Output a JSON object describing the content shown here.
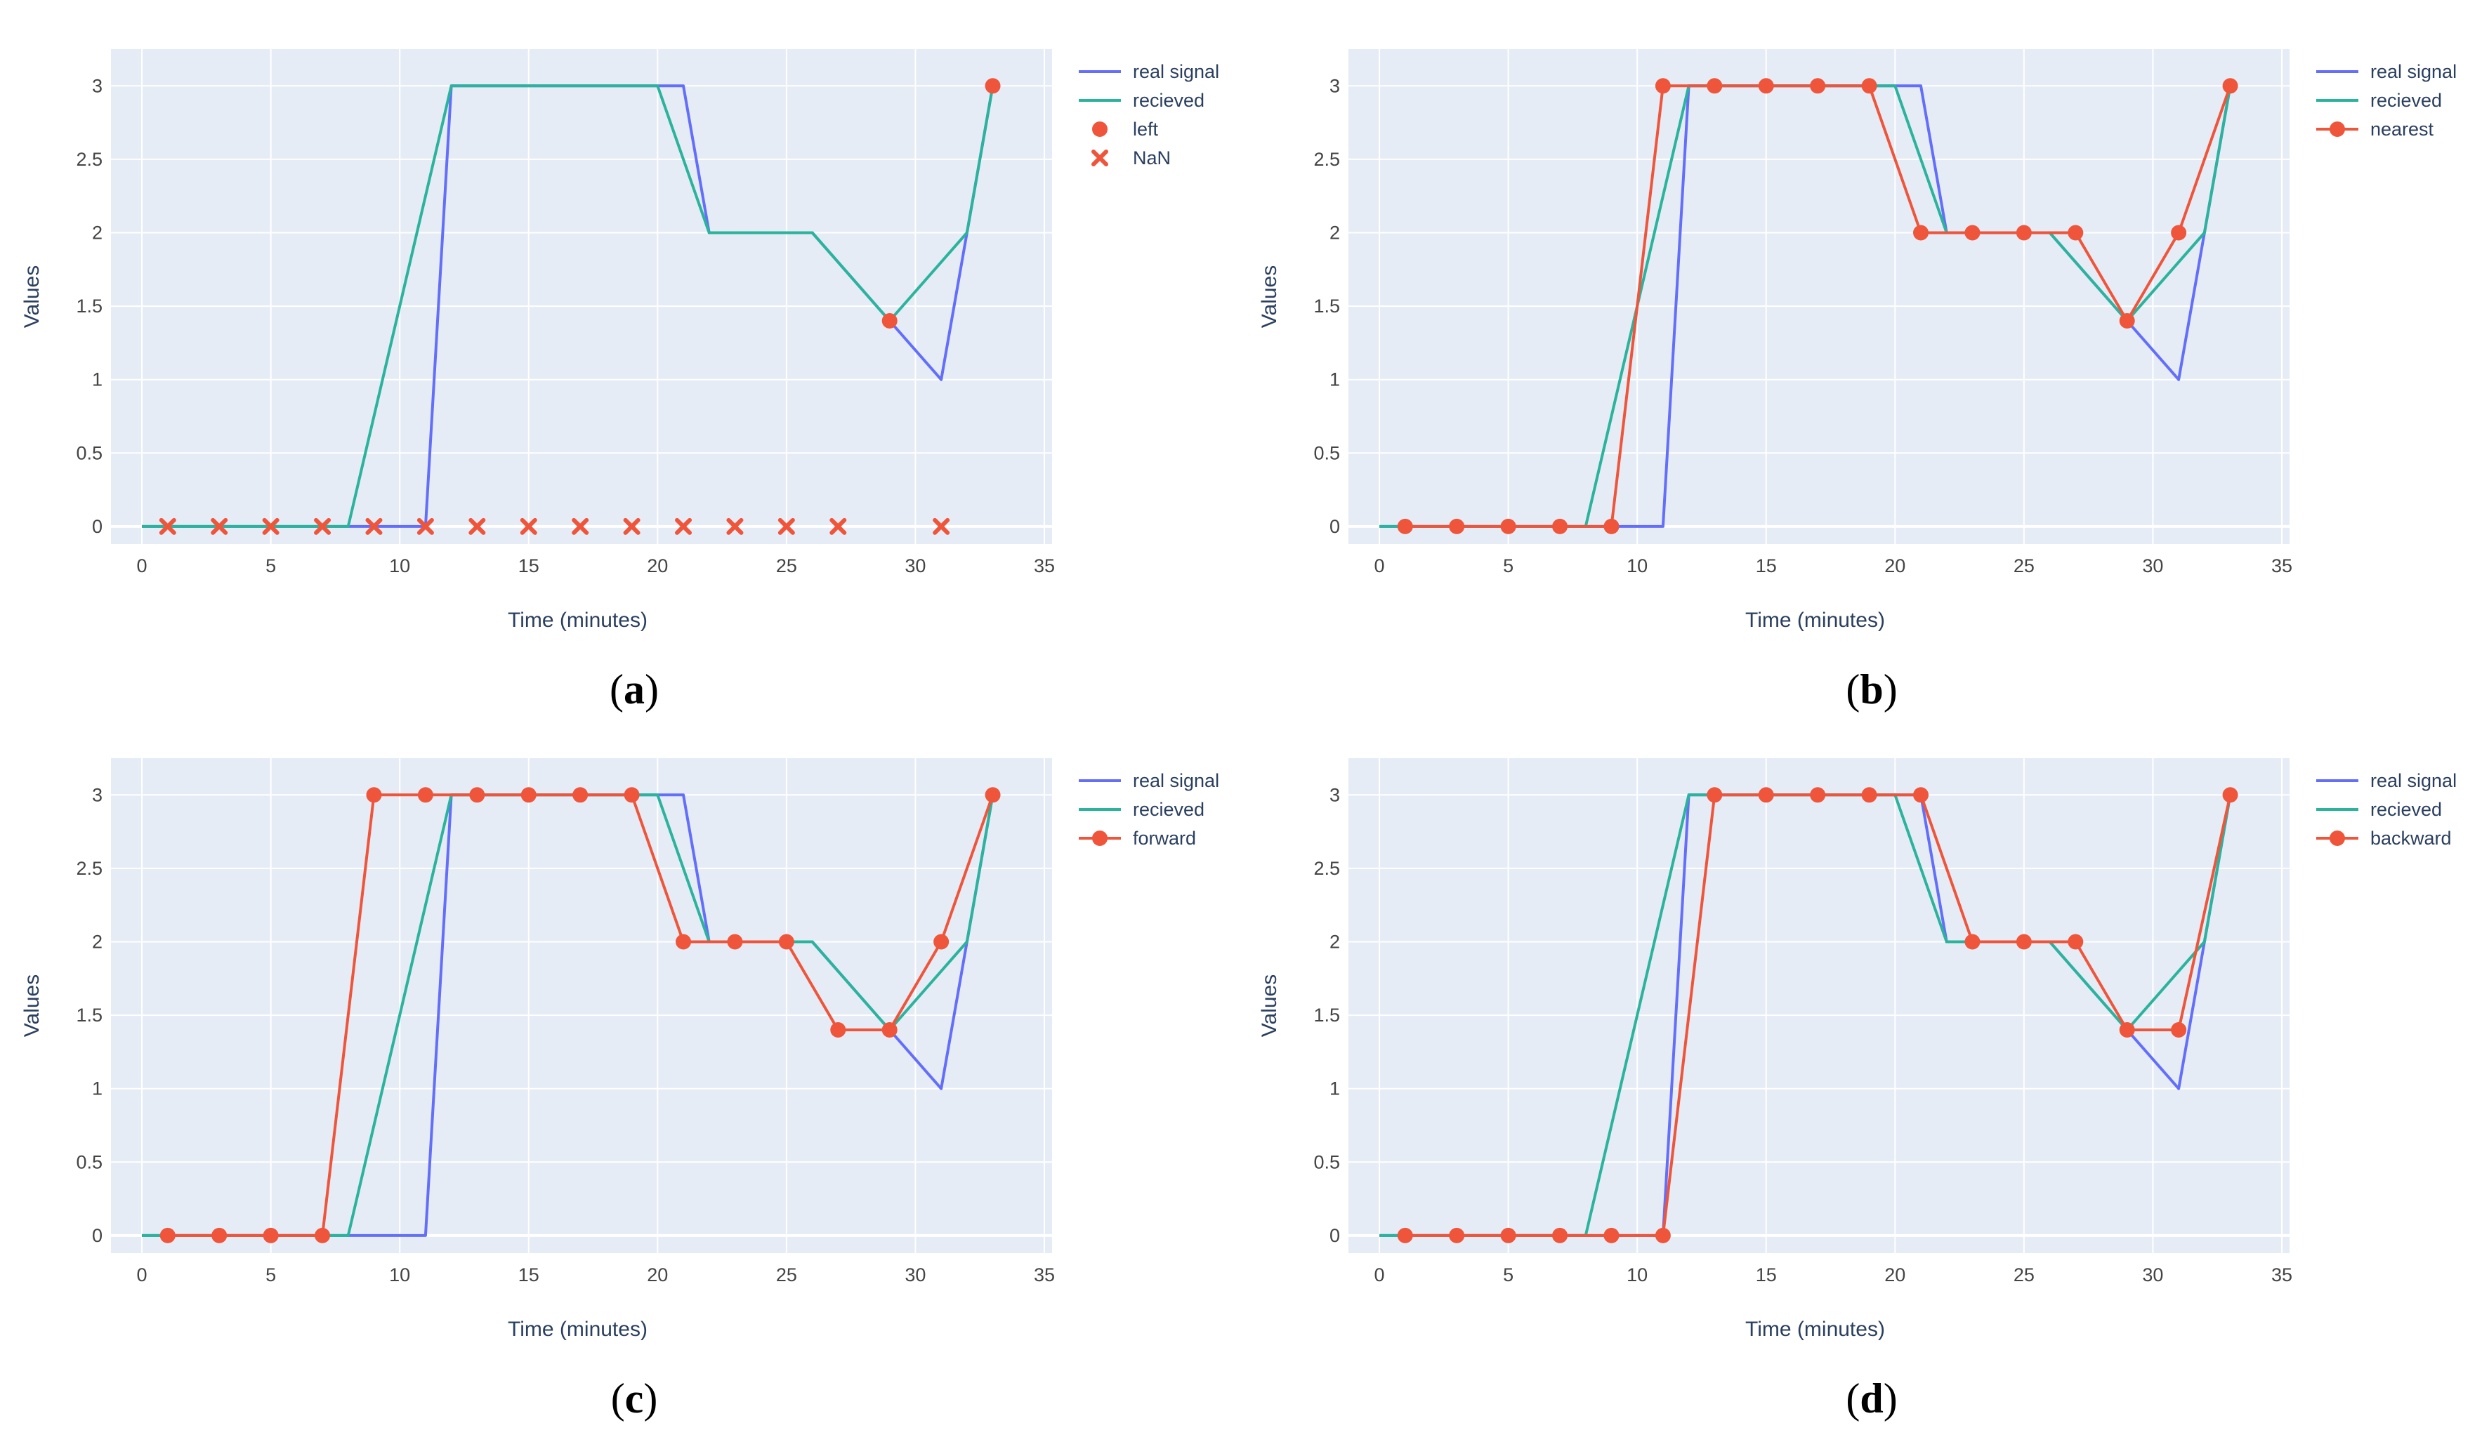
{
  "colors": {
    "plot_bg": "#e5ecf6",
    "grid": "#ffffff",
    "real_signal": "#636efa",
    "recieved": "#2bb39c",
    "method": "#ef553b",
    "axis_text": "#2a3f5f"
  },
  "chart_data": [
    {
      "type": "line",
      "panel_label": "a",
      "xlabel": "Time (minutes)",
      "ylabel": "Values",
      "xlim": [
        -1.2,
        35.3
      ],
      "ylim": [
        -0.12,
        3.25
      ],
      "xticks": [
        0,
        5,
        10,
        15,
        20,
        25,
        30,
        35
      ],
      "yticks": [
        0,
        0.5,
        1,
        1.5,
        2,
        2.5,
        3
      ],
      "legend_position": "top-right",
      "series": [
        {
          "name": "real signal",
          "kind": "line",
          "color": "#636efa",
          "x": [
            0,
            11,
            12,
            21,
            22,
            26,
            29,
            31,
            33
          ],
          "y": [
            0,
            0,
            3,
            3,
            2,
            2,
            1.4,
            1,
            3
          ]
        },
        {
          "name": "recieved",
          "kind": "line",
          "color": "#2bb39c",
          "x": [
            0,
            8,
            12,
            20,
            22,
            26,
            29,
            32,
            33
          ],
          "y": [
            0,
            0,
            3,
            3,
            2,
            2,
            1.4,
            2,
            3
          ]
        },
        {
          "name": "left",
          "kind": "markers",
          "marker": "circle",
          "color": "#ef553b",
          "x": [
            29,
            33
          ],
          "y": [
            1.4,
            3
          ]
        },
        {
          "name": "NaN",
          "kind": "markers",
          "marker": "x",
          "color": "#ef553b",
          "x": [
            1,
            3,
            5,
            7,
            9,
            11,
            13,
            15,
            17,
            19,
            21,
            23,
            25,
            27,
            31
          ],
          "y": [
            0,
            0,
            0,
            0,
            0,
            0,
            0,
            0,
            0,
            0,
            0,
            0,
            0,
            0,
            0
          ]
        }
      ]
    },
    {
      "type": "line",
      "panel_label": "b",
      "xlabel": "Time (minutes)",
      "ylabel": "Values",
      "xlim": [
        -1.2,
        35.3
      ],
      "ylim": [
        -0.12,
        3.25
      ],
      "xticks": [
        0,
        5,
        10,
        15,
        20,
        25,
        30,
        35
      ],
      "yticks": [
        0,
        0.5,
        1,
        1.5,
        2,
        2.5,
        3
      ],
      "legend_position": "top-right",
      "series": [
        {
          "name": "real signal",
          "kind": "line",
          "color": "#636efa",
          "x": [
            0,
            11,
            12,
            21,
            22,
            26,
            29,
            31,
            33
          ],
          "y": [
            0,
            0,
            3,
            3,
            2,
            2,
            1.4,
            1,
            3
          ]
        },
        {
          "name": "recieved",
          "kind": "line",
          "color": "#2bb39c",
          "x": [
            0,
            8,
            12,
            20,
            22,
            26,
            29,
            32,
            33
          ],
          "y": [
            0,
            0,
            3,
            3,
            2,
            2,
            1.4,
            2,
            3
          ]
        },
        {
          "name": "nearest",
          "kind": "lines+markers",
          "color": "#ef553b",
          "x": [
            1,
            3,
            5,
            7,
            9,
            11,
            13,
            15,
            17,
            19,
            21,
            23,
            25,
            27,
            29,
            31,
            33
          ],
          "y": [
            0,
            0,
            0,
            0,
            0,
            3,
            3,
            3,
            3,
            3,
            2,
            2,
            2,
            2,
            1.4,
            2,
            3
          ]
        }
      ]
    },
    {
      "type": "line",
      "panel_label": "c",
      "xlabel": "Time (minutes)",
      "ylabel": "Values",
      "xlim": [
        -1.2,
        35.3
      ],
      "ylim": [
        -0.12,
        3.25
      ],
      "xticks": [
        0,
        5,
        10,
        15,
        20,
        25,
        30,
        35
      ],
      "yticks": [
        0,
        0.5,
        1,
        1.5,
        2,
        2.5,
        3
      ],
      "legend_position": "top-right",
      "series": [
        {
          "name": "real signal",
          "kind": "line",
          "color": "#636efa",
          "x": [
            0,
            11,
            12,
            21,
            22,
            26,
            29,
            31,
            33
          ],
          "y": [
            0,
            0,
            3,
            3,
            2,
            2,
            1.4,
            1,
            3
          ]
        },
        {
          "name": "recieved",
          "kind": "line",
          "color": "#2bb39c",
          "x": [
            0,
            8,
            12,
            20,
            22,
            26,
            29,
            32,
            33
          ],
          "y": [
            0,
            0,
            3,
            3,
            2,
            2,
            1.4,
            2,
            3
          ]
        },
        {
          "name": "forward",
          "kind": "lines+markers",
          "color": "#ef553b",
          "x": [
            1,
            3,
            5,
            7,
            9,
            11,
            13,
            15,
            17,
            19,
            21,
            23,
            25,
            27,
            29,
            31,
            33
          ],
          "y": [
            0,
            0,
            0,
            0,
            3,
            3,
            3,
            3,
            3,
            3,
            2,
            2,
            2,
            1.4,
            1.4,
            2,
            3
          ]
        }
      ]
    },
    {
      "type": "line",
      "panel_label": "d",
      "xlabel": "Time (minutes)",
      "ylabel": "Values",
      "xlim": [
        -1.2,
        35.3
      ],
      "ylim": [
        -0.12,
        3.25
      ],
      "xticks": [
        0,
        5,
        10,
        15,
        20,
        25,
        30,
        35
      ],
      "yticks": [
        0,
        0.5,
        1,
        1.5,
        2,
        2.5,
        3
      ],
      "legend_position": "top-right",
      "series": [
        {
          "name": "real signal",
          "kind": "line",
          "color": "#636efa",
          "x": [
            0,
            11,
            12,
            21,
            22,
            26,
            29,
            31,
            33
          ],
          "y": [
            0,
            0,
            3,
            3,
            2,
            2,
            1.4,
            1,
            3
          ]
        },
        {
          "name": "recieved",
          "kind": "line",
          "color": "#2bb39c",
          "x": [
            0,
            8,
            12,
            20,
            22,
            26,
            29,
            32,
            33
          ],
          "y": [
            0,
            0,
            3,
            3,
            2,
            2,
            1.4,
            2,
            3
          ]
        },
        {
          "name": "backward",
          "kind": "lines+markers",
          "color": "#ef553b",
          "x": [
            1,
            3,
            5,
            7,
            9,
            11,
            13,
            15,
            17,
            19,
            21,
            23,
            25,
            27,
            29,
            31,
            33
          ],
          "y": [
            0,
            0,
            0,
            0,
            0,
            0,
            3,
            3,
            3,
            3,
            3,
            2,
            2,
            2,
            1.4,
            1.4,
            3
          ]
        }
      ]
    }
  ]
}
